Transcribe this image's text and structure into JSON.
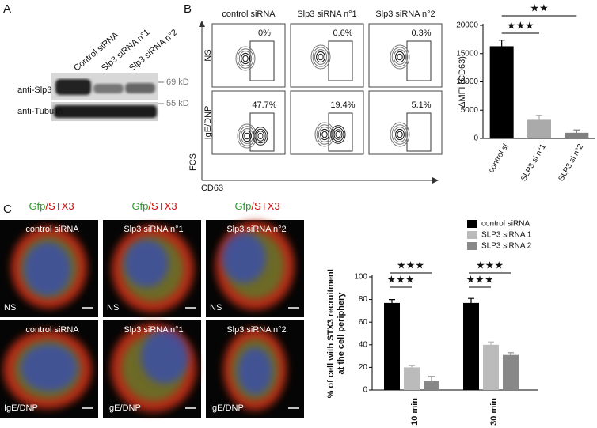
{
  "panel_labels": [
    "A",
    "B",
    "C"
  ],
  "blot": {
    "lanes": [
      "Control siRNA",
      "Slp3 siRNA n°1",
      "Slp3 siRNA n°2"
    ],
    "rows": [
      "anti-Slp3",
      "anti-Tubulin"
    ],
    "markers": [
      "69 kD",
      "55 kD"
    ]
  },
  "flow": {
    "columns": [
      "control siRNA",
      "Slp3 siRNA n°1",
      "Slp3 siRNA n°2"
    ],
    "rows": [
      "NS",
      "IgE/DNP"
    ],
    "percentages": [
      [
        "0%",
        "0.6%",
        "0.3%"
      ],
      [
        "47.7%",
        "19.4%",
        "5.1%"
      ]
    ],
    "x_label": "CD63",
    "y_label": "FCS"
  },
  "imaging": {
    "header_parts": [
      "Gfp",
      "/",
      "STX3"
    ],
    "columns": [
      "control siRNA",
      "Slp3 siRNA n°1",
      "Slp3 siRNA n°2"
    ],
    "rows": [
      "NS",
      "IgE/DNP"
    ]
  },
  "chart_data": [
    {
      "type": "bar",
      "ylabel": "ΔMFI (CD63)",
      "categories": [
        "control si",
        "SLP3 si n°1",
        "SLP3 si n°2"
      ],
      "values": [
        16300,
        3300,
        1000
      ],
      "errors": [
        1100,
        800,
        500
      ],
      "colors": [
        "#000000",
        "#aaaaaa",
        "#808080"
      ],
      "ylim": [
        0,
        20000
      ],
      "yticks": [
        0,
        5000,
        10000,
        15000,
        20000
      ],
      "annotations": [
        "★★★",
        "★★"
      ]
    },
    {
      "type": "bar",
      "ylabel": [
        "% of cell with STX3 recruitment",
        "at the cell periphery"
      ],
      "categories": [
        "10 min",
        "30 min"
      ],
      "series": [
        {
          "name": "control siRNA",
          "color": "#000000",
          "values": [
            77,
            77
          ],
          "errors": [
            3,
            4
          ]
        },
        {
          "name": "SLP3 siRNA 1",
          "color": "#bbbbbb",
          "values": [
            20,
            40
          ],
          "errors": [
            2,
            2.5
          ]
        },
        {
          "name": "SLP3 siRNA 2",
          "color": "#888888",
          "values": [
            8,
            31
          ],
          "errors": [
            4,
            2
          ]
        }
      ],
      "ylim": [
        0,
        100
      ],
      "yticks": [
        0,
        20,
        40,
        60,
        80,
        100
      ],
      "legend": "upper right",
      "annotations": [
        "★★★",
        "★★★",
        "★★★",
        "★★★"
      ]
    }
  ]
}
